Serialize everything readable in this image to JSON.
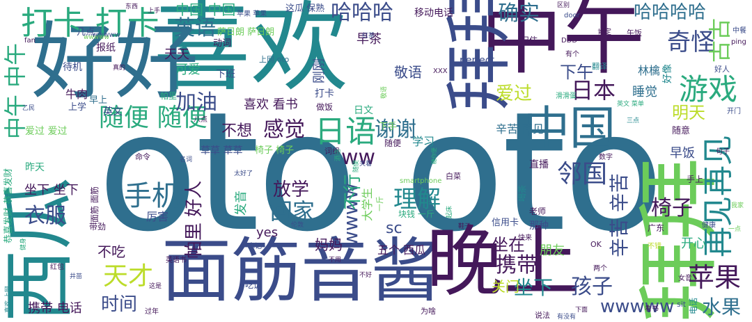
{
  "palette": {
    "purple": "#44185a",
    "indigo": "#3b4c8a",
    "blue": "#2f6f8e",
    "teal": "#22888e",
    "green": "#2aaa7e",
    "lime": "#6ccc5a",
    "yellow": "#bcdc2a"
  },
  "words": [
    {
      "text": "oto oto"
    },
    {
      "text": "喜欢"
    },
    {
      "text": "中午"
    },
    {
      "text": "好好"
    },
    {
      "text": "面筋音酱"
    },
    {
      "text": "晚上"
    },
    {
      "text": "西瓜"
    },
    {
      "text": "拜拜"
    },
    {
      "text": "中国"
    },
    {
      "text": "再见再见"
    },
    {
      "text": "日语"
    },
    {
      "text": "打卡 打卡"
    },
    {
      "text": "游戏"
    },
    {
      "text": "随便 随便"
    },
    {
      "text": "苹果"
    },
    {
      "text": "天才"
    },
    {
      "text": "哈哈哈"
    },
    {
      "text": "英语"
    },
    {
      "text": "确实"
    },
    {
      "text": "奇怪"
    },
    {
      "text": "中午 中午"
    },
    {
      "text": "加油"
    },
    {
      "text": "感觉"
    },
    {
      "text": "谢谢"
    },
    {
      "text": "日本"
    },
    {
      "text": "手机"
    },
    {
      "text": "理解"
    },
    {
      "text": "回家"
    },
    {
      "text": "邻国"
    },
    {
      "text": "椅子"
    },
    {
      "text": "孩子"
    },
    {
      "text": "水果"
    },
    {
      "text": "携带"
    },
    {
      "text": "坐下"
    },
    {
      "text": "时间"
    },
    {
      "text": "衣服"
    },
    {
      "text": "哈哈哈哈"
    },
    {
      "text": "下午"
    },
    {
      "text": "ww"
    },
    {
      "text": "wwww"
    },
    {
      "text": "wwwww"
    },
    {
      "text": "辛苦 辛苦"
    },
    {
      "text": "帕里 好人"
    },
    {
      "text": "中国 中国"
    },
    {
      "text": "爱过"
    },
    {
      "text": "明天"
    },
    {
      "text": "放学"
    },
    {
      "text": "不想"
    },
    {
      "text": "不行"
    },
    {
      "text": "喜欢 看书"
    },
    {
      "text": "坐在"
    },
    {
      "text": "关门"
    },
    {
      "text": "五个 西瓜"
    },
    {
      "text": "妈妈"
    },
    {
      "text": "朋友"
    },
    {
      "text": "开心"
    },
    {
      "text": "天天"
    },
    {
      "text": "可爱"
    },
    {
      "text": "早茶"
    },
    {
      "text": "敬语"
    },
    {
      "text": "perfect"
    },
    {
      "text": "林檎"
    },
    {
      "text": "睡觉"
    },
    {
      "text": "辛苦 再见"
    },
    {
      "text": "学习"
    },
    {
      "text": "直播"
    },
    {
      "text": "早饭"
    },
    {
      "text": "yes"
    },
    {
      "text": "发音"
    },
    {
      "text": "厉害"
    },
    {
      "text": "老师"
    },
    {
      "text": "那种"
    },
    {
      "text": "信用卡"
    },
    {
      "text": "坐下 坐下"
    },
    {
      "text": "携带 电话"
    },
    {
      "text": "不吃"
    },
    {
      "text": "英文"
    },
    {
      "text": "牛肉"
    },
    {
      "text": "上学"
    },
    {
      "text": "早上"
    },
    {
      "text": "待机"
    },
    {
      "text": "报纸"
    },
    {
      "text": "几点"
    },
    {
      "text": "动词"
    },
    {
      "text": "移动电话"
    },
    {
      "text": "这瓜 保熟"
    },
    {
      "text": "苹果 苹果"
    },
    {
      "text": "萨日朗 萨日朗"
    },
    {
      "text": "上网 oto"
    },
    {
      "text": "下班"
    },
    {
      "text": "刚刚"
    },
    {
      "text": "打卡"
    },
    {
      "text": "做饭"
    },
    {
      "text": "日文"
    },
    {
      "text": "下手"
    },
    {
      "text": "随便"
    },
    {
      "text": "草草 草草"
    },
    {
      "text": "椅子 椅子"
    },
    {
      "text": "爱过 爱过"
    },
    {
      "text": "昨天"
    },
    {
      "text": "sc"
    },
    {
      "text": "帕里"
    },
    {
      "text": "随意"
    },
    {
      "text": "手上"
    },
    {
      "text": "sit"
    },
    {
      "text": "OK"
    },
    {
      "text": "广东"
    },
    {
      "text": "健康"
    },
    {
      "text": "中餐"
    },
    {
      "text": "好人"
    },
    {
      "text": "开门"
    },
    {
      "text": "记住"
    },
    {
      "text": "午饭"
    },
    {
      "text": "肯定"
    },
    {
      "text": "有个"
    },
    {
      "text": "DDD"
    },
    {
      "text": "door"
    },
    {
      "text": "区别"
    },
    {
      "text": "XXX"
    },
    {
      "text": "红茶"
    },
    {
      "text": "wwwww"
    },
    {
      "text": "fan"
    },
    {
      "text": "真的"
    },
    {
      "text": "白菜"
    },
    {
      "text": "smartphone"
    },
    {
      "text": "块钱 一斤"
    },
    {
      "text": "命令"
    },
    {
      "text": "名词"
    },
    {
      "text": "词组"
    },
    {
      "text": "太好了"
    },
    {
      "text": "关着"
    },
    {
      "text": "带劲"
    },
    {
      "text": "忘记"
    },
    {
      "text": "伦敦"
    },
    {
      "text": "鞋子"
    },
    {
      "text": "快来"
    },
    {
      "text": "不错"
    },
    {
      "text": "两个"
    },
    {
      "text": "红包"
    },
    {
      "text": "井苗"
    },
    {
      "text": "这是"
    },
    {
      "text": "英语书"
    },
    {
      "text": "吃饭"
    },
    {
      "text": "不用"
    },
    {
      "text": "不好"
    },
    {
      "text": "为啥"
    },
    {
      "text": "说法"
    },
    {
      "text": "有没有"
    },
    {
      "text": "下面"
    },
    {
      "text": "看书"
    },
    {
      "text": "女音"
    },
    {
      "text": "过年"
    },
    {
      "text": "数字"
    },
    {
      "text": "句子"
    },
    {
      "text": "我家"
    },
    {
      "text": "一点"
    },
    {
      "text": "电话"
    },
    {
      "text": "英文 菜单"
    },
    {
      "text": "三点"
    },
    {
      "text": "滑滑蛋"
    },
    {
      "text": "翻译"
    },
    {
      "text": "八点"
    },
    {
      "text": "乙民"
    },
    {
      "text": "东西"
    },
    {
      "text": "上手"
    },
    {
      "text": "ping"
    },
    {
      "text": "wwwww"
    },
    {
      "text": "大学生"
    },
    {
      "text": "一斤"
    },
    {
      "text": "喝茶"
    },
    {
      "text": "古古"
    },
    {
      "text": "好像"
    },
    {
      "text": "面筋 面筋"
    },
    {
      "text": "恭喜发财 恭喜发财"
    },
    {
      "text": "喜欢 上网"
    },
    {
      "text": "健身"
    },
    {
      "text": "起床"
    },
    {
      "text": "糖你便"
    },
    {
      "text": "敬语"
    },
    {
      "text": "随便"
    },
    {
      "text": "酒店"
    }
  ]
}
